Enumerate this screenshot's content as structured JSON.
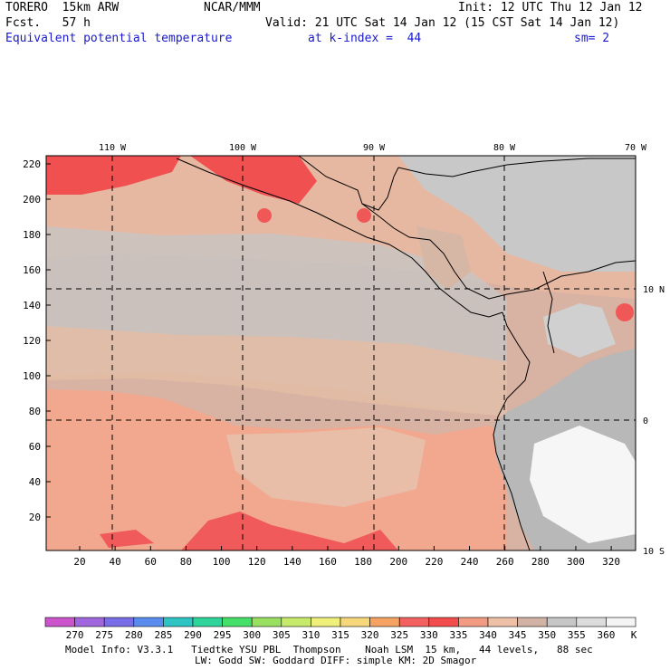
{
  "header": {
    "model": "TORERO  15km ARW",
    "org": "NCAR/MMM",
    "init": "Init: 12 UTC Thu 12 Jan 12",
    "fcst": "Fcst.   57 h",
    "valid": "Valid: 21 UTC Sat 14 Jan 12 (15 CST Sat 14 Jan 12)",
    "field": "Equivalent potential temperature",
    "level": "at k-index =  44",
    "smoothing": "sm= 2"
  },
  "map": {
    "top_labels": [
      "110 W",
      "100 W",
      "90 W",
      "80 W",
      "70 W"
    ],
    "right_labels": [
      "10 N",
      "0",
      "10 S"
    ],
    "left_ticks": [
      "220",
      "200",
      "180",
      "160",
      "140",
      "120",
      "100",
      "80",
      "60",
      "40",
      "20"
    ],
    "bottom_ticks": [
      "20",
      "40",
      "60",
      "80",
      "100",
      "120",
      "140",
      "160",
      "180",
      "200",
      "220",
      "240",
      "260",
      "280",
      "300",
      "320"
    ]
  },
  "colorbar": {
    "labels": [
      "270",
      "275",
      "280",
      "285",
      "290",
      "295",
      "300",
      "305",
      "310",
      "315",
      "320",
      "325",
      "330",
      "335",
      "340",
      "345",
      "350",
      "355",
      "360"
    ],
    "unit": "K",
    "colors": [
      "#cc55cc",
      "#a066dd",
      "#7a6ee8",
      "#5a8cf0",
      "#2ec4c4",
      "#2ed49a",
      "#44e06a",
      "#9ae060",
      "#c8ea6a",
      "#eef07a",
      "#f6d87a",
      "#f6a262",
      "#f26060",
      "#f24c4c",
      "#f29a82",
      "#eec0a6",
      "#d2b2a4",
      "#c6c6c6",
      "#dcdcdc",
      "#f4f4f4"
    ]
  },
  "footer": {
    "line1": "Model Info: V3.3.1   Tiedtke YSU PBL  Thompson    Noah LSM  15 km,   44 levels,   88 sec",
    "line2": "LW: Godd SW: Goddard DIFF: simple KM: 2D Smagor"
  }
}
